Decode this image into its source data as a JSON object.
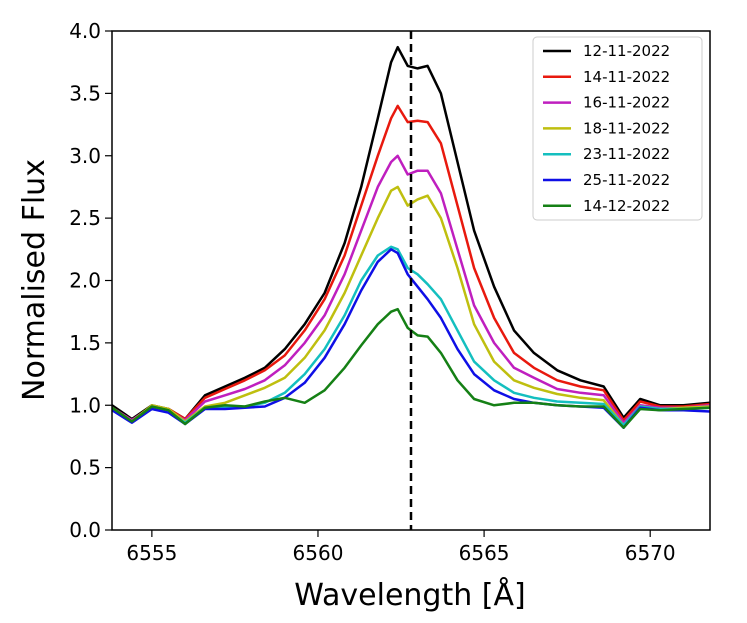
{
  "chart_data": {
    "type": "line",
    "title": "",
    "xlabel": "Wavelength [Å]",
    "ylabel": "Normalised Flux",
    "xlim": [
      6553.8,
      6571.8
    ],
    "ylim": [
      0.0,
      4.0
    ],
    "xticks": [
      6555,
      6560,
      6565,
      6570
    ],
    "yticks": [
      0.0,
      0.5,
      1.0,
      1.5,
      2.0,
      2.5,
      3.0,
      3.5,
      4.0
    ],
    "xtick_labels": [
      "6555",
      "6560",
      "6565",
      "6570"
    ],
    "ytick_labels": [
      "0.0",
      "0.5",
      "1.0",
      "1.5",
      "2.0",
      "2.5",
      "3.0",
      "3.5",
      "4.0"
    ],
    "grid": false,
    "legend_position": "top-right",
    "vline": {
      "x": 6562.8,
      "style": "dashed",
      "color": "#000000"
    },
    "x": [
      6553.8,
      6554.4,
      6555.0,
      6555.5,
      6556.0,
      6556.6,
      6557.2,
      6557.8,
      6558.4,
      6559.0,
      6559.6,
      6560.2,
      6560.8,
      6561.3,
      6561.8,
      6562.2,
      6562.4,
      6562.7,
      6563.0,
      6563.3,
      6563.7,
      6564.2,
      6564.7,
      6565.3,
      6565.9,
      6566.5,
      6567.2,
      6567.9,
      6568.6,
      6569.2,
      6569.7,
      6570.3,
      6571.0,
      6571.8
    ],
    "series": [
      {
        "name": "12-11-2022",
        "color": "#000000",
        "values": [
          1.0,
          0.89,
          1.0,
          0.97,
          0.89,
          1.08,
          1.15,
          1.22,
          1.3,
          1.45,
          1.65,
          1.9,
          2.3,
          2.75,
          3.3,
          3.75,
          3.87,
          3.72,
          3.7,
          3.72,
          3.5,
          2.95,
          2.4,
          1.95,
          1.6,
          1.42,
          1.28,
          1.2,
          1.15,
          0.9,
          1.05,
          1.0,
          1.0,
          1.02
        ]
      },
      {
        "name": "14-11-2022",
        "color": "#e8190e",
        "values": [
          0.98,
          0.88,
          0.99,
          0.97,
          0.89,
          1.06,
          1.13,
          1.2,
          1.28,
          1.4,
          1.6,
          1.85,
          2.2,
          2.6,
          3.0,
          3.3,
          3.4,
          3.27,
          3.28,
          3.27,
          3.1,
          2.6,
          2.1,
          1.7,
          1.42,
          1.3,
          1.2,
          1.15,
          1.12,
          0.88,
          1.03,
          0.99,
          0.99,
          1.01
        ]
      },
      {
        "name": "16-11-2022",
        "color": "#bf1fbf",
        "values": [
          0.98,
          0.88,
          0.99,
          0.96,
          0.88,
          1.03,
          1.08,
          1.13,
          1.2,
          1.32,
          1.5,
          1.72,
          2.05,
          2.4,
          2.75,
          2.95,
          3.0,
          2.85,
          2.88,
          2.88,
          2.7,
          2.25,
          1.8,
          1.5,
          1.3,
          1.22,
          1.13,
          1.1,
          1.08,
          0.86,
          1.0,
          0.98,
          0.98,
          1.0
        ]
      },
      {
        "name": "18-11-2022",
        "color": "#bfbf0f",
        "values": [
          0.98,
          0.87,
          1.0,
          0.97,
          0.87,
          0.99,
          1.02,
          1.08,
          1.14,
          1.22,
          1.38,
          1.6,
          1.9,
          2.2,
          2.5,
          2.72,
          2.75,
          2.6,
          2.65,
          2.68,
          2.5,
          2.1,
          1.65,
          1.35,
          1.2,
          1.14,
          1.09,
          1.06,
          1.04,
          0.84,
          0.99,
          0.97,
          0.98,
          0.99
        ]
      },
      {
        "name": "23-11-2022",
        "color": "#14bfbf",
        "values": [
          0.97,
          0.87,
          0.97,
          0.95,
          0.86,
          0.98,
          0.98,
          0.99,
          1.02,
          1.1,
          1.25,
          1.45,
          1.72,
          2.0,
          2.2,
          2.27,
          2.25,
          2.1,
          2.05,
          1.97,
          1.85,
          1.6,
          1.35,
          1.2,
          1.1,
          1.06,
          1.03,
          1.02,
          1.01,
          0.84,
          0.99,
          0.97,
          0.97,
          0.98
        ]
      },
      {
        "name": "25-11-2022",
        "color": "#0f0fe6",
        "values": [
          0.96,
          0.86,
          0.97,
          0.94,
          0.85,
          0.97,
          0.97,
          0.98,
          0.99,
          1.06,
          1.18,
          1.38,
          1.65,
          1.92,
          2.15,
          2.25,
          2.22,
          2.05,
          1.95,
          1.85,
          1.7,
          1.45,
          1.25,
          1.12,
          1.05,
          1.02,
          1.0,
          0.99,
          0.98,
          0.82,
          0.98,
          0.96,
          0.96,
          0.95
        ]
      },
      {
        "name": "14-12-2022",
        "color": "#158015",
        "values": [
          0.98,
          0.87,
          0.99,
          0.96,
          0.85,
          0.98,
          1.0,
          0.99,
          1.03,
          1.06,
          1.02,
          1.12,
          1.3,
          1.48,
          1.65,
          1.75,
          1.77,
          1.62,
          1.56,
          1.55,
          1.42,
          1.2,
          1.05,
          1.0,
          1.02,
          1.02,
          1.0,
          0.99,
          0.99,
          0.82,
          0.97,
          0.96,
          0.97,
          0.98
        ]
      }
    ]
  }
}
